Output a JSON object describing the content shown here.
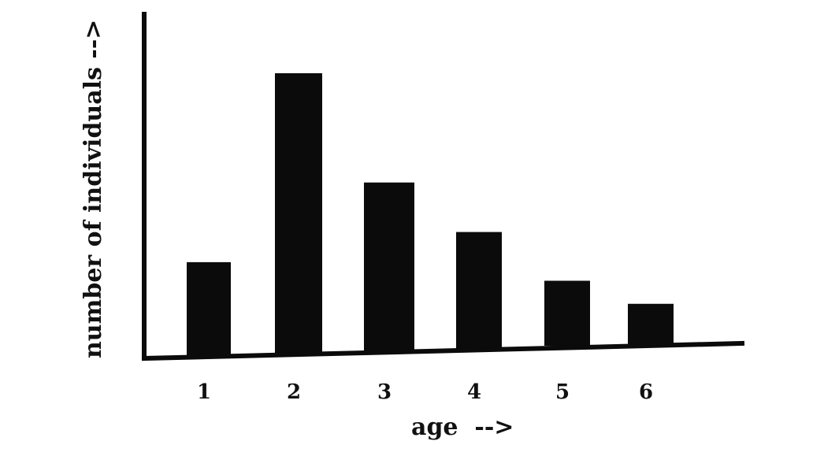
{
  "chart_data": {
    "type": "bar",
    "categories": [
      "1",
      "2",
      "3",
      "4",
      "5",
      "6"
    ],
    "values": [
      32,
      97,
      58,
      40,
      22,
      14
    ],
    "xlabel": "age  -->",
    "ylabel": "number of individuals -->",
    "ylim": [
      0,
      100
    ],
    "grid": false,
    "legend": "none",
    "colors": {
      "bar": "#0b0b0b",
      "axis": "#0b0b0b",
      "text": "#111111",
      "background": "#ffffff"
    }
  }
}
